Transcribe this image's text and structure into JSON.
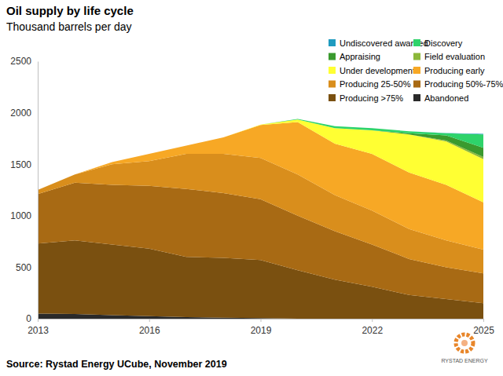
{
  "chart_data": {
    "type": "area",
    "title": "Oil supply by life cycle",
    "subtitle": "Thousand barrels per day",
    "source": "Source: Rystad Energy UCube, November 2019",
    "logo": "RYSTAD ENERGY",
    "stacked": true,
    "grid": false,
    "legend": "top-right",
    "x": [
      2013,
      2014,
      2015,
      2016,
      2017,
      2018,
      2019,
      2020,
      2021,
      2022,
      2023,
      2024,
      2025
    ],
    "xlim": [
      2013,
      2025
    ],
    "xticks": [
      2013,
      2016,
      2019,
      2022,
      2025
    ],
    "ylim": [
      0,
      2500
    ],
    "yticks": [
      0,
      500,
      1000,
      1500,
      2000,
      2500
    ],
    "series": [
      {
        "name": "Undiscovered awarded",
        "color": "#1f9bbf",
        "values": [
          0,
          0,
          0,
          0,
          0,
          0,
          0,
          0,
          0,
          0,
          0,
          3,
          5
        ]
      },
      {
        "name": "Discovery",
        "color": "#2ed36a",
        "values": [
          0,
          0,
          0,
          0,
          0,
          0,
          0,
          5,
          20,
          20,
          20,
          20,
          130
        ]
      },
      {
        "name": "Appraising",
        "color": "#3a9a2e",
        "values": [
          0,
          0,
          0,
          0,
          0,
          0,
          0,
          0,
          0,
          0,
          10,
          50,
          90
        ]
      },
      {
        "name": "Field evaluation",
        "color": "#8cb83a",
        "values": [
          0,
          0,
          0,
          0,
          0,
          0,
          0,
          0,
          0,
          0,
          0,
          10,
          20
        ]
      },
      {
        "name": "Under development",
        "color": "#ffff33",
        "values": [
          0,
          0,
          0,
          0,
          0,
          0,
          5,
          25,
          150,
          230,
          370,
          420,
          420
        ]
      },
      {
        "name": "Producing early",
        "color": "#f7a825",
        "values": [
          0,
          0,
          20,
          70,
          80,
          160,
          320,
          510,
          500,
          550,
          550,
          540,
          460
        ]
      },
      {
        "name": "Producing 25-50%",
        "color": "#d98e1c",
        "values": [
          40,
          80,
          200,
          240,
          340,
          380,
          400,
          400,
          350,
          330,
          290,
          260,
          230
        ]
      },
      {
        "name": "Producing 50%-75%",
        "color": "#a86a14",
        "values": [
          480,
          560,
          580,
          610,
          660,
          630,
          590,
          530,
          470,
          410,
          350,
          310,
          290
        ]
      },
      {
        "name": "Producing >75%",
        "color": "#7a5010",
        "values": [
          680,
          715,
          685,
          655,
          585,
          580,
          565,
          470,
          380,
          310,
          230,
          190,
          150
        ]
      },
      {
        "name": "Abandoned",
        "color": "#2a2a2a",
        "values": [
          50,
          45,
          35,
          25,
          15,
          10,
          5,
          0,
          0,
          0,
          0,
          0,
          0
        ]
      }
    ]
  }
}
